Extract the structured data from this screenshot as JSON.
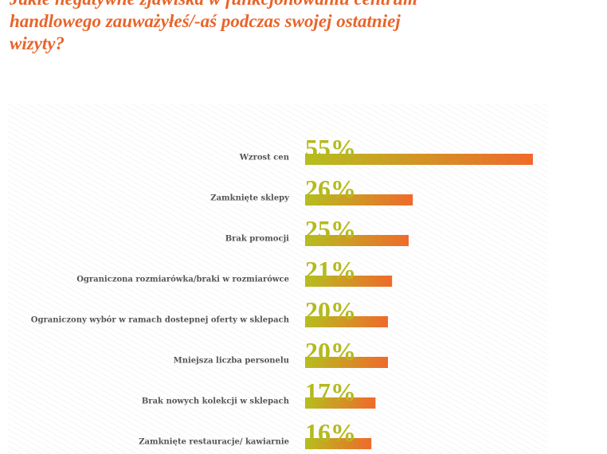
{
  "chart_data": {
    "type": "bar",
    "orientation": "horizontal",
    "title": [
      "Jakie negatywne zjawiska w funkcjonowaniu centrum",
      "handlowego zauważyłeś/-aś podczas swojej ostatniej",
      "wizyty?"
    ],
    "categories": [
      "Wzrost cen",
      "Zamknięte sklepy",
      "Brak promocji",
      "Ograniczona rozmiarówka/braki w rozmiarówce",
      "Ograniczony wybór w ramach dostepnej oferty w sklepach",
      "Mniejsza liczba personelu",
      "Brak nowych kolekcji w sklepach",
      "Zamknięte restauracje/ kawiarnie"
    ],
    "values": [
      55,
      26,
      25,
      21,
      20,
      20,
      17,
      16
    ],
    "value_labels": [
      "55%",
      "26%",
      "25%",
      "21%",
      "20%",
      "20%",
      "17%",
      "16%"
    ],
    "gradient": [
      "#b6be1f",
      "#ef6a2b"
    ]
  }
}
